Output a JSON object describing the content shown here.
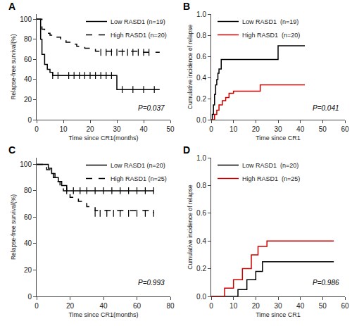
{
  "chart_data": [
    {
      "type": "step",
      "title": "A",
      "x_label": "Time since CR1(months)",
      "y_label": "Relapse-free survival(%)",
      "xlim": [
        0,
        50
      ],
      "ylim": [
        0,
        105
      ],
      "xticks": [
        0,
        10,
        20,
        30,
        40,
        50
      ],
      "yticks": [
        0,
        20,
        40,
        60,
        80,
        100
      ],
      "annotation": "P=0.037",
      "legend": "upper right",
      "grid": false,
      "series": [
        {
          "name": "Low RASD1 (n=19)",
          "color": "#000000",
          "line_style": "solid",
          "marker": "|",
          "x": [
            0,
            1,
            1.5,
            2,
            3,
            4,
            5,
            6,
            22,
            30,
            46
          ],
          "values": [
            100,
            100,
            80,
            65,
            55,
            50,
            47,
            44,
            44,
            30,
            30
          ],
          "censor_x": [
            6,
            8,
            12,
            14,
            16,
            18,
            20,
            22,
            24,
            26,
            28,
            32,
            36,
            40,
            44
          ],
          "censor_values": [
            44,
            44,
            44,
            44,
            44,
            44,
            44,
            44,
            44,
            44,
            44,
            30,
            30,
            30,
            30
          ]
        },
        {
          "name": "High RASD1 (n=20)",
          "color": "#000000",
          "line_style": "dashed",
          "marker": "|",
          "x": [
            0,
            2,
            3,
            5,
            7,
            9,
            11,
            13,
            15,
            18,
            22,
            40,
            46
          ],
          "values": [
            100,
            90,
            86,
            84,
            82,
            79,
            77,
            75,
            73,
            71,
            68,
            67,
            67
          ],
          "censor_x": [
            24,
            26,
            28,
            30,
            32,
            34,
            36,
            38,
            40,
            42
          ],
          "censor_values": [
            67,
            67,
            67,
            67,
            67,
            67,
            67,
            67,
            67,
            67
          ]
        }
      ]
    },
    {
      "type": "step",
      "title": "B",
      "x_label": "Time since CR1",
      "y_label": "Cumulative incidence of relapse",
      "xlim": [
        0,
        60
      ],
      "ylim": [
        0,
        1
      ],
      "xticks": [
        0,
        10,
        20,
        30,
        40,
        50,
        60
      ],
      "yticks": [
        {
          "value": 0,
          "label": "0.0"
        },
        0.2,
        0.4,
        0.6,
        0.8,
        {
          "value": 1,
          "label": "1.0"
        }
      ],
      "annotation": "P=0.041",
      "legend": "upper left",
      "grid": false,
      "series": [
        {
          "name": "Low RASD1  (n=19)",
          "color": "#000000",
          "line_style": "solid",
          "x": [
            0,
            0.5,
            1,
            1.5,
            2,
            2.5,
            3,
            3.5,
            4.5,
            22,
            30,
            42
          ],
          "values": [
            0,
            0.05,
            0.14,
            0.24,
            0.33,
            0.38,
            0.44,
            0.48,
            0.57,
            0.57,
            0.7,
            0.7
          ]
        },
        {
          "name": "High RASD1  (n=20)",
          "color": "#cc0000",
          "line_style": "solid",
          "x": [
            0,
            1.5,
            2.5,
            3.5,
            5,
            6.5,
            8,
            10,
            20,
            22,
            42
          ],
          "values": [
            0,
            0.05,
            0.09,
            0.14,
            0.18,
            0.21,
            0.25,
            0.27,
            0.27,
            0.33,
            0.33
          ]
        }
      ]
    },
    {
      "type": "step",
      "title": "C",
      "x_label": "Time since CR1(months)",
      "y_label": "Relapse-free survival(%)",
      "xlim": [
        0,
        80
      ],
      "ylim": [
        0,
        105
      ],
      "xticks": [
        0,
        20,
        40,
        60,
        80
      ],
      "yticks": [
        0,
        20,
        40,
        60,
        80,
        100
      ],
      "annotation": "P=0.993",
      "legend": "upper right",
      "grid": false,
      "series": [
        {
          "name": "Low RASD1 (n=20)",
          "color": "#000000",
          "line_style": "solid",
          "marker": "|",
          "x": [
            0,
            5,
            7,
            9,
            11,
            13,
            15,
            18,
            70
          ],
          "values": [
            100,
            100,
            97,
            93,
            90,
            87,
            84,
            80,
            80
          ],
          "censor_x": [
            18,
            22,
            26,
            30,
            35,
            40,
            45,
            50,
            55,
            60,
            65,
            70
          ],
          "censor_values": [
            80,
            80,
            80,
            80,
            80,
            80,
            80,
            80,
            80,
            80,
            80,
            80
          ]
        },
        {
          "name": "High RASD1 (n=25)",
          "color": "#000000",
          "line_style": "dashed",
          "marker": "|",
          "x": [
            0,
            4,
            6,
            8,
            10,
            12,
            14,
            16,
            18,
            20,
            25,
            30,
            35,
            70
          ],
          "values": [
            100,
            98,
            96,
            93,
            90,
            87,
            84,
            80,
            77,
            75,
            72,
            68,
            65,
            63
          ],
          "censor_x": [
            35,
            38,
            42,
            46,
            50,
            55,
            60,
            65,
            70
          ],
          "censor_values": [
            63,
            63,
            63,
            63,
            63,
            63,
            63,
            63,
            63
          ]
        }
      ]
    },
    {
      "type": "step",
      "title": "D",
      "x_label": "Time since CR1",
      "y_label": "Cumulative incidence of relapse",
      "xlim": [
        0,
        60
      ],
      "ylim": [
        0,
        1
      ],
      "xticks": [
        0,
        10,
        20,
        30,
        40,
        50,
        60
      ],
      "yticks": [
        {
          "value": 0,
          "label": "0.0"
        },
        0.2,
        0.4,
        0.6,
        0.8,
        {
          "value": 1,
          "label": "1.0"
        }
      ],
      "annotation": "P=0.986",
      "legend": "upper left",
      "grid": false,
      "series": [
        {
          "name": "Low RASD1  (n=20)",
          "color": "#000000",
          "line_style": "solid",
          "x": [
            0,
            9,
            12,
            16,
            20,
            23,
            55
          ],
          "values": [
            0,
            0.0,
            0.05,
            0.12,
            0.18,
            0.25,
            0.25
          ]
        },
        {
          "name": "High RASD1  (n=25)",
          "color": "#cc0000",
          "line_style": "solid",
          "x": [
            0,
            6,
            10,
            14,
            18,
            21,
            25,
            55
          ],
          "values": [
            0,
            0.06,
            0.12,
            0.2,
            0.3,
            0.36,
            0.4,
            0.4
          ]
        }
      ]
    }
  ]
}
